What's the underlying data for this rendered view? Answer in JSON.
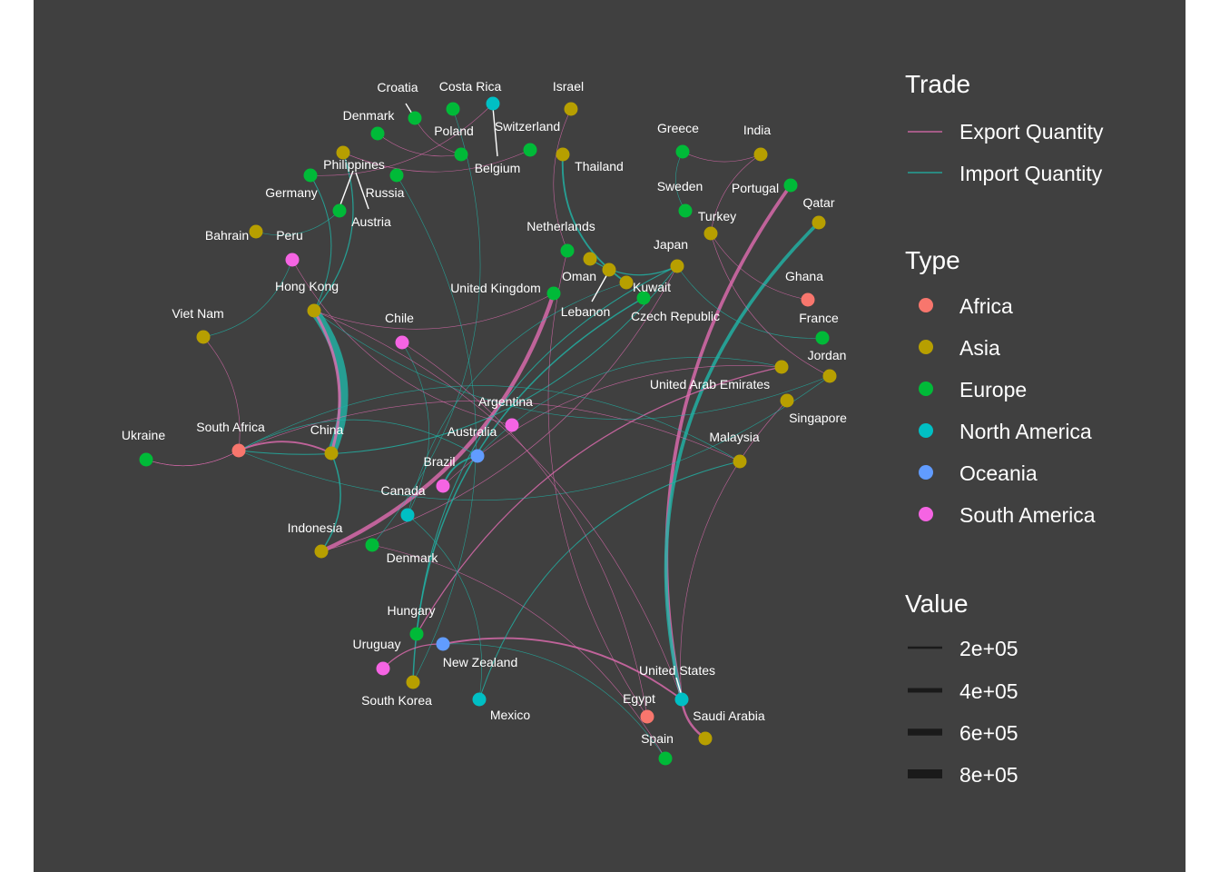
{
  "colors": {
    "background": "#404040",
    "export": "#e06bb0",
    "import": "#1fb5a8",
    "Africa": "#f8766d",
    "Asia": "#b79f00",
    "Europe": "#00ba38",
    "North America": "#00bfc4",
    "Oceania": "#619cff",
    "South America": "#f564e3"
  },
  "legend": {
    "trade": {
      "title": "Trade",
      "items": [
        "Export Quantity",
        "Import Quantity"
      ]
    },
    "type": {
      "title": "Type",
      "items": [
        "Africa",
        "Asia",
        "Europe",
        "North America",
        "Oceania",
        "South America"
      ]
    },
    "value": {
      "title": "Value",
      "items": [
        "2e+05",
        "4e+05",
        "6e+05",
        "8e+05"
      ]
    }
  },
  "nodes": [
    {
      "id": "croatia",
      "name": "Croatia",
      "type": "Europe"
    },
    {
      "id": "costa_rica",
      "name": "Costa Rica",
      "type": "North America"
    },
    {
      "id": "israel",
      "name": "Israel",
      "type": "Asia"
    },
    {
      "id": "denmark_n",
      "name": "Denmark",
      "type": "Europe"
    },
    {
      "id": "poland",
      "name": "Poland",
      "type": "Europe"
    },
    {
      "id": "switzerland",
      "name": "Switzerland",
      "type": "Europe"
    },
    {
      "id": "belgium",
      "name": "Belgium",
      "type": "Europe"
    },
    {
      "id": "thailand",
      "name": "Thailand",
      "type": "Asia"
    },
    {
      "id": "greece",
      "name": "Greece",
      "type": "Europe"
    },
    {
      "id": "india",
      "name": "India",
      "type": "Asia"
    },
    {
      "id": "philippines",
      "name": "Philippines",
      "type": "Asia"
    },
    {
      "id": "germany",
      "name": "Germany",
      "type": "Europe"
    },
    {
      "id": "russia",
      "name": "Russia",
      "type": "Europe"
    },
    {
      "id": "austria",
      "name": "Austria",
      "type": "Europe"
    },
    {
      "id": "sweden",
      "name": "Sweden",
      "type": "Europe"
    },
    {
      "id": "portugal",
      "name": "Portugal",
      "type": "Europe"
    },
    {
      "id": "qatar",
      "name": "Qatar",
      "type": "Asia"
    },
    {
      "id": "bahrain",
      "name": "Bahrain",
      "type": "Asia"
    },
    {
      "id": "peru",
      "name": "Peru",
      "type": "South America"
    },
    {
      "id": "turkey",
      "name": "Turkey",
      "type": "Asia"
    },
    {
      "id": "netherlands",
      "name": "Netherlands",
      "type": "Europe"
    },
    {
      "id": "japan",
      "name": "Japan",
      "type": "Asia"
    },
    {
      "id": "oman",
      "name": "Oman",
      "type": "Asia"
    },
    {
      "id": "kuwait",
      "name": "Kuwait",
      "type": "Asia"
    },
    {
      "id": "lebanon",
      "name": "Lebanon",
      "type": "Asia"
    },
    {
      "id": "ghana",
      "name": "Ghana",
      "type": "Africa"
    },
    {
      "id": "hong_kong",
      "name": "Hong Kong",
      "type": "Asia"
    },
    {
      "id": "united_kingdom",
      "name": "United Kingdom",
      "type": "Europe"
    },
    {
      "id": "czech",
      "name": "Czech Republic",
      "type": "Europe"
    },
    {
      "id": "france",
      "name": "France",
      "type": "Europe"
    },
    {
      "id": "viet_nam",
      "name": "Viet Nam",
      "type": "Asia"
    },
    {
      "id": "chile",
      "name": "Chile",
      "type": "South America"
    },
    {
      "id": "jordan",
      "name": "Jordan",
      "type": "Asia"
    },
    {
      "id": "uae",
      "name": "United Arab Emirates",
      "type": "Asia"
    },
    {
      "id": "singapore",
      "name": "Singapore",
      "type": "Asia"
    },
    {
      "id": "argentina",
      "name": "Argentina",
      "type": "South America"
    },
    {
      "id": "ukraine",
      "name": "Ukraine",
      "type": "Europe"
    },
    {
      "id": "south_africa",
      "name": "South Africa",
      "type": "Africa"
    },
    {
      "id": "china",
      "name": "China",
      "type": "Asia"
    },
    {
      "id": "australia",
      "name": "Australia",
      "type": "Oceania"
    },
    {
      "id": "malaysia",
      "name": "Malaysia",
      "type": "Asia"
    },
    {
      "id": "brazil",
      "name": "Brazil",
      "type": "South America"
    },
    {
      "id": "canada",
      "name": "Canada",
      "type": "North America"
    },
    {
      "id": "indonesia",
      "name": "Indonesia",
      "type": "Asia"
    },
    {
      "id": "denmark_s",
      "name": "Denmark",
      "type": "Europe"
    },
    {
      "id": "hungary",
      "name": "Hungary",
      "type": "Europe"
    },
    {
      "id": "uruguay",
      "name": "Uruguay",
      "type": "South America"
    },
    {
      "id": "new_zealand",
      "name": "New Zealand",
      "type": "Oceania"
    },
    {
      "id": "united_states",
      "name": "United States",
      "type": "North America"
    },
    {
      "id": "south_korea",
      "name": "South Korea",
      "type": "Asia"
    },
    {
      "id": "mexico",
      "name": "Mexico",
      "type": "North America"
    },
    {
      "id": "egypt",
      "name": "Egypt",
      "type": "Africa"
    },
    {
      "id": "saudi_arabia",
      "name": "Saudi Arabia",
      "type": "Asia"
    },
    {
      "id": "spain",
      "name": "Spain",
      "type": "Europe"
    }
  ],
  "edges": [
    {
      "from": "china",
      "to": "hong_kong",
      "trade": "import",
      "value": 800000
    },
    {
      "from": "china",
      "to": "hong_kong",
      "trade": "export",
      "value": 250000
    },
    {
      "from": "united_states",
      "to": "portugal",
      "trade": "export",
      "value": 300000
    },
    {
      "from": "united_states",
      "to": "qatar",
      "trade": "import",
      "value": 300000
    },
    {
      "from": "united_kingdom",
      "to": "indonesia",
      "trade": "export",
      "value": 350000
    },
    {
      "from": "brazil",
      "to": "australia",
      "trade": "import",
      "value": 150000
    },
    {
      "from": "united_states",
      "to": "saudi_arabia",
      "trade": "export",
      "value": 200000
    },
    {
      "from": "united_states",
      "to": "new_zealand",
      "trade": "export",
      "value": 150000
    },
    {
      "from": "south_africa",
      "to": "china",
      "trade": "export",
      "value": 150000
    },
    {
      "from": "south_africa",
      "to": "ukraine",
      "trade": "export",
      "value": 50000
    },
    {
      "from": "south_africa",
      "to": "viet_nam",
      "trade": "export",
      "value": 50000
    },
    {
      "from": "south_africa",
      "to": "japan",
      "trade": "import",
      "value": 80000
    },
    {
      "from": "south_africa",
      "to": "malaysia",
      "trade": "export",
      "value": 50000
    },
    {
      "from": "ukraine",
      "to": "south_africa",
      "trade": "export",
      "value": 50000
    },
    {
      "from": "thailand",
      "to": "kuwait",
      "trade": "import",
      "value": 150000
    },
    {
      "from": "oman",
      "to": "japan",
      "trade": "import",
      "value": 100000
    },
    {
      "from": "indonesia",
      "to": "china",
      "trade": "import",
      "value": 120000
    },
    {
      "from": "indonesia",
      "to": "japan",
      "trade": "export",
      "value": 50000
    },
    {
      "from": "hungary",
      "to": "japan",
      "trade": "import",
      "value": 80000
    },
    {
      "from": "hungary",
      "to": "uae",
      "trade": "export",
      "value": 100000
    },
    {
      "from": "south_korea",
      "to": "czech",
      "trade": "import",
      "value": 120000
    },
    {
      "from": "uruguay",
      "to": "new_zealand",
      "trade": "export",
      "value": 100000
    },
    {
      "from": "mexico",
      "to": "malaysia",
      "trade": "import",
      "value": 80000
    },
    {
      "from": "philippines",
      "to": "hong_kong",
      "trade": "import",
      "value": 100000
    },
    {
      "from": "germany",
      "to": "hong_kong",
      "trade": "import",
      "value": 80000
    },
    {
      "from": "peru",
      "to": "viet_nam",
      "trade": "import",
      "value": 50000
    },
    {
      "from": "croatia",
      "to": "belgium",
      "trade": "export",
      "value": 40000
    },
    {
      "from": "denmark_n",
      "to": "belgium",
      "trade": "export",
      "value": 40000
    },
    {
      "from": "greece",
      "to": "sweden",
      "trade": "import",
      "value": 40000
    },
    {
      "from": "india",
      "to": "greece",
      "trade": "export",
      "value": 40000
    },
    {
      "from": "india",
      "to": "turkey",
      "trade": "export",
      "value": 40000
    },
    {
      "from": "ghana",
      "to": "turkey",
      "trade": "export",
      "value": 40000
    },
    {
      "from": "france",
      "to": "japan",
      "trade": "import",
      "value": 40000
    },
    {
      "from": "jordan",
      "to": "turkey",
      "trade": "export",
      "value": 40000
    },
    {
      "from": "singapore",
      "to": "united_states",
      "trade": "export",
      "value": 40000
    },
    {
      "from": "chile",
      "to": "canada",
      "trade": "import",
      "value": 40000
    },
    {
      "from": "argentina",
      "to": "peru",
      "trade": "export",
      "value": 40000
    },
    {
      "from": "australia",
      "to": "south_africa",
      "trade": "import",
      "value": 60000
    },
    {
      "from": "egypt",
      "to": "netherlands",
      "trade": "export",
      "value": 40000
    },
    {
      "from": "spain",
      "to": "denmark_s",
      "trade": "export",
      "value": 40000
    },
    {
      "from": "bahrain",
      "to": "austria",
      "trade": "import",
      "value": 40000
    },
    {
      "from": "malaysia",
      "to": "south_africa",
      "trade": "import",
      "value": 40000
    },
    {
      "from": "netherlands",
      "to": "israel",
      "trade": "export",
      "value": 30000
    },
    {
      "from": "switzerland",
      "to": "philippines",
      "trade": "export",
      "value": 30000
    },
    {
      "from": "poland",
      "to": "denmark_s",
      "trade": "import",
      "value": 30000
    },
    {
      "from": "costa_rica",
      "to": "germany",
      "trade": "export",
      "value": 30000
    },
    {
      "from": "united_kingdom",
      "to": "hong_kong",
      "trade": "export",
      "value": 30000
    },
    {
      "from": "jordan",
      "to": "south_africa",
      "trade": "import",
      "value": 30000
    },
    {
      "from": "canada",
      "to": "kuwait",
      "trade": "import",
      "value": 30000
    },
    {
      "from": "brazil",
      "to": "uae",
      "trade": "export",
      "value": 30000
    },
    {
      "from": "united_states",
      "to": "hong_kong",
      "trade": "export",
      "value": 30000
    },
    {
      "from": "egypt",
      "to": "chile",
      "trade": "export",
      "value": 30000
    },
    {
      "from": "new_zealand",
      "to": "spain",
      "trade": "import",
      "value": 30000
    },
    {
      "from": "south_korea",
      "to": "russia",
      "trade": "import",
      "value": 30000
    },
    {
      "from": "mexico",
      "to": "canada",
      "trade": "import",
      "value": 30000
    },
    {
      "from": "uae",
      "to": "australia",
      "trade": "import",
      "value": 30000
    },
    {
      "from": "hong_kong",
      "to": "jordan",
      "trade": "import",
      "value": 30000
    }
  ]
}
